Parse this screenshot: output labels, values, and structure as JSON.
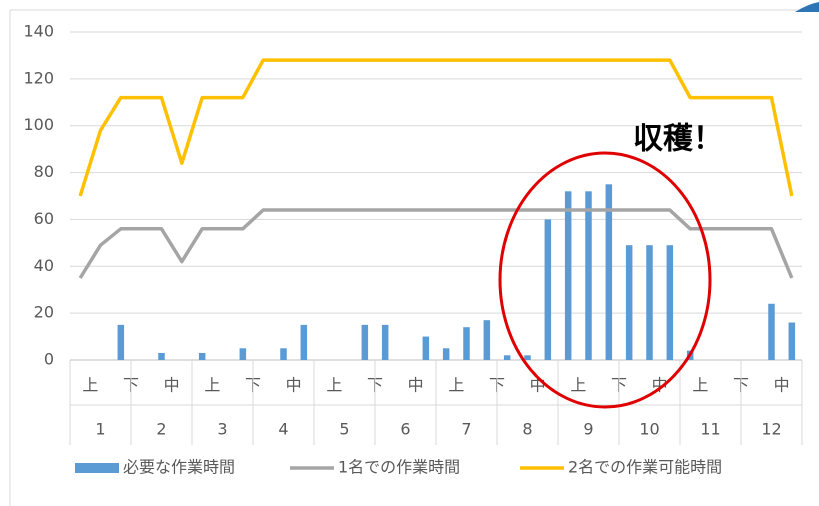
{
  "chart_data": {
    "type": "bar",
    "categories": [
      "上",
      null,
      "下",
      null,
      "中",
      null,
      "上",
      null,
      "下",
      null,
      "中",
      null,
      "上",
      null,
      "下",
      null,
      "中",
      null,
      "上",
      null,
      "下",
      null,
      "中",
      null,
      "上",
      null,
      "下",
      null,
      "中",
      null,
      "上",
      null,
      "下",
      null,
      "中",
      null
    ],
    "months": [
      "1",
      "2",
      "3",
      "4",
      "5",
      "6",
      "7",
      "8",
      "9",
      "10",
      "11",
      "12"
    ],
    "series": [
      {
        "name": "必要な作業時間",
        "kind": "bar",
        "color": "#5b9bd5",
        "values": [
          0,
          0,
          15,
          0,
          3,
          0,
          3,
          0,
          5,
          0,
          5,
          15,
          0,
          0,
          15,
          15,
          0,
          10,
          5,
          14,
          17,
          2,
          2,
          60,
          72,
          72,
          75,
          49,
          49,
          49,
          4,
          0,
          0,
          0,
          24,
          16
        ]
      },
      {
        "name": "1名での作業時間",
        "kind": "line",
        "color": "#a5a5a5",
        "values": [
          35,
          49,
          56,
          56,
          56,
          42,
          56,
          56,
          56,
          64,
          64,
          64,
          64,
          64,
          64,
          64,
          64,
          64,
          64,
          64,
          64,
          64,
          64,
          64,
          64,
          64,
          64,
          64,
          64,
          64,
          56,
          56,
          56,
          56,
          56,
          35
        ]
      },
      {
        "name": "2名での作業可能時間",
        "kind": "line",
        "color": "#ffc000",
        "values": [
          70,
          98,
          112,
          112,
          112,
          84,
          112,
          112,
          112,
          128,
          128,
          128,
          128,
          128,
          128,
          128,
          128,
          128,
          128,
          128,
          128,
          128,
          128,
          128,
          128,
          128,
          128,
          128,
          128,
          128,
          112,
          112,
          112,
          112,
          112,
          70
        ]
      }
    ],
    "ylim": [
      0,
      140
    ],
    "yticks": [
      0,
      20,
      40,
      60,
      80,
      100,
      120,
      140
    ],
    "grid": true,
    "legend": "bottom",
    "annotation": "収穫！"
  }
}
